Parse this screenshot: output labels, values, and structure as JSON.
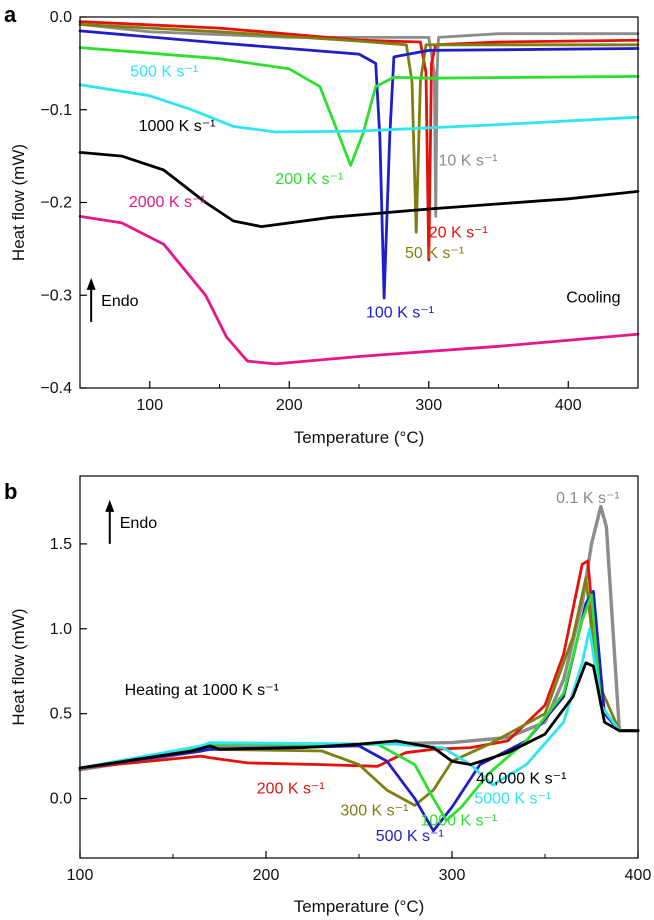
{
  "chart_data": [
    {
      "panel": "a",
      "type": "line",
      "title": "",
      "xlabel": "Temperature (°C)",
      "ylabel": "Heat flow (mW)",
      "xlim": [
        50,
        450
      ],
      "ylim": [
        -0.4,
        0.0
      ],
      "xticks": [
        100,
        200,
        300,
        400
      ],
      "yticks": [
        -0.4,
        -0.3,
        -0.2,
        -0.1,
        0.0
      ],
      "ytick_labels": [
        "−0.4",
        "−0.3",
        "−0.2",
        "−0.1",
        "0.0"
      ],
      "annotations": [
        {
          "text": "Endo",
          "arrow": "up",
          "x": 58,
          "y": -0.305
        },
        {
          "text": "Cooling",
          "x": 418,
          "y": -0.308
        }
      ],
      "series": [
        {
          "name": "10 K s⁻¹",
          "color": "#8c8c8c",
          "label_x": 307,
          "label_y": -0.16,
          "x": [
            50,
            100,
            200,
            300,
            304,
            305,
            306,
            307,
            350,
            450
          ],
          "y": [
            -0.008,
            -0.016,
            -0.022,
            -0.022,
            -0.06,
            -0.215,
            -0.06,
            -0.022,
            -0.018,
            -0.018
          ]
        },
        {
          "name": "20 K s⁻¹",
          "color": "#e3120b",
          "label_x": 300,
          "label_y": -0.238,
          "x": [
            50,
            150,
            250,
            294,
            298,
            300,
            302,
            305,
            350,
            450
          ],
          "y": [
            -0.005,
            -0.012,
            -0.025,
            -0.027,
            -0.06,
            -0.262,
            -0.05,
            -0.03,
            -0.027,
            -0.025
          ]
        },
        {
          "name": "50 K s⁻¹",
          "color": "#7f7f0f",
          "label_x": 283,
          "label_y": -0.26,
          "x": [
            50,
            150,
            250,
            284,
            288,
            291,
            294,
            298,
            350,
            450
          ],
          "y": [
            -0.008,
            -0.016,
            -0.026,
            -0.03,
            -0.07,
            -0.232,
            -0.07,
            -0.03,
            -0.03,
            -0.03
          ]
        },
        {
          "name": "100 K s⁻¹",
          "color": "#1f1fc9",
          "label_x": 255,
          "label_y": -0.324,
          "x": [
            50,
            150,
            250,
            262,
            265,
            268,
            272,
            275,
            300,
            450
          ],
          "y": [
            -0.015,
            -0.028,
            -0.04,
            -0.05,
            -0.13,
            -0.303,
            -0.13,
            -0.043,
            -0.036,
            -0.034
          ]
        },
        {
          "name": "200 K s⁻¹",
          "color": "#2ee02e",
          "label_x": 190,
          "label_y": -0.18,
          "x": [
            50,
            150,
            200,
            222,
            235,
            244,
            253,
            262,
            275,
            300,
            450
          ],
          "y": [
            -0.033,
            -0.045,
            -0.056,
            -0.075,
            -0.125,
            -0.16,
            -0.125,
            -0.075,
            -0.065,
            -0.066,
            -0.064
          ]
        },
        {
          "name": "500 K s⁻¹",
          "color": "#2ee6f2",
          "label_x": 86,
          "label_y": -0.064,
          "x": [
            50,
            100,
            130,
            160,
            190,
            250,
            350,
            450
          ],
          "y": [
            -0.073,
            -0.085,
            -0.1,
            -0.118,
            -0.124,
            -0.123,
            -0.116,
            -0.108
          ]
        },
        {
          "name": "1000 K s⁻¹",
          "color": "#000000",
          "label_x": 92,
          "label_y": -0.123,
          "x": [
            50,
            80,
            110,
            140,
            160,
            180,
            230,
            300,
            400,
            450
          ],
          "y": [
            -0.146,
            -0.15,
            -0.165,
            -0.2,
            -0.22,
            -0.226,
            -0.216,
            -0.207,
            -0.196,
            -0.188
          ]
        },
        {
          "name": "2000 K s⁻¹",
          "color": "#e5178a",
          "label_x": 85,
          "label_y": -0.205,
          "x": [
            50,
            80,
            110,
            140,
            155,
            170,
            190,
            250,
            350,
            450
          ],
          "y": [
            -0.215,
            -0.222,
            -0.245,
            -0.3,
            -0.345,
            -0.371,
            -0.374,
            -0.366,
            -0.355,
            -0.342
          ]
        }
      ]
    },
    {
      "panel": "b",
      "type": "line",
      "title": "",
      "xlabel": "Temperature (°C)",
      "ylabel": "Heat flow (mW)",
      "xlim": [
        100,
        400
      ],
      "ylim": [
        -0.35,
        1.9
      ],
      "xticks": [
        100,
        200,
        300,
        400
      ],
      "yticks": [
        0.0,
        0.5,
        1.0,
        1.5
      ],
      "ytick_labels": [
        "0.0",
        "0.5",
        "1.0",
        "1.5"
      ],
      "annotations": [
        {
          "text": "Endo",
          "arrow": "up",
          "x": 116,
          "y": 1.63
        },
        {
          "text": "Heating at 1000 K s⁻¹",
          "x": 124,
          "y": 0.61
        }
      ],
      "series": [
        {
          "name": "0.1 K s⁻¹",
          "color": "#8c8c8c",
          "label_x": 356,
          "label_y": 1.74,
          "x": [
            100,
            165,
            170,
            180,
            250,
            300,
            330,
            350,
            360,
            370,
            375,
            380,
            383,
            390,
            400
          ],
          "y": [
            0.17,
            0.28,
            0.3,
            0.31,
            0.32,
            0.33,
            0.36,
            0.45,
            0.7,
            1.15,
            1.5,
            1.72,
            1.6,
            0.4,
            0.4
          ]
        },
        {
          "name": "200 K s⁻¹",
          "color": "#e3120b",
          "label_x": 195,
          "label_y": 0.03,
          "x": [
            100,
            165,
            170,
            190,
            230,
            260,
            275,
            290,
            310,
            330,
            350,
            360,
            370,
            373,
            380,
            390,
            400
          ],
          "y": [
            0.18,
            0.25,
            0.24,
            0.21,
            0.2,
            0.19,
            0.27,
            0.29,
            0.3,
            0.34,
            0.55,
            0.85,
            1.38,
            1.4,
            0.55,
            0.4,
            0.4
          ]
        },
        {
          "name": "300 K s⁻¹",
          "color": "#7f7f0f",
          "label_x": 240,
          "label_y": -0.1,
          "x": [
            100,
            165,
            170,
            230,
            250,
            265,
            280,
            290,
            300,
            320,
            350,
            365,
            372,
            378,
            390,
            400
          ],
          "y": [
            0.18,
            0.28,
            0.29,
            0.28,
            0.2,
            0.05,
            -0.04,
            0.05,
            0.22,
            0.32,
            0.5,
            0.95,
            1.3,
            0.7,
            0.4,
            0.4
          ]
        },
        {
          "name": "500 K s⁻¹",
          "color": "#1f1fc9",
          "label_x": 259,
          "label_y": -0.25,
          "x": [
            100,
            165,
            170,
            250,
            265,
            280,
            290,
            300,
            315,
            340,
            360,
            372,
            376,
            382,
            390,
            400
          ],
          "y": [
            0.18,
            0.28,
            0.29,
            0.31,
            0.22,
            0.0,
            -0.19,
            -0.05,
            0.2,
            0.34,
            0.6,
            1.15,
            1.22,
            0.5,
            0.4,
            0.4
          ]
        },
        {
          "name": "1000 K s⁻¹",
          "color": "#2ee02e",
          "label_x": 283,
          "label_y": -0.16,
          "x": [
            100,
            165,
            170,
            260,
            280,
            290,
            297,
            305,
            320,
            340,
            360,
            370,
            375,
            380,
            390,
            400
          ],
          "y": [
            0.18,
            0.3,
            0.32,
            0.32,
            0.2,
            0.0,
            -0.13,
            -0.05,
            0.15,
            0.34,
            0.62,
            1.05,
            1.2,
            0.55,
            0.4,
            0.4
          ]
        },
        {
          "name": "5000 K s⁻¹",
          "color": "#2ee6f2",
          "label_x": 312,
          "label_y": -0.03,
          "x": [
            100,
            165,
            170,
            270,
            295,
            310,
            322,
            340,
            360,
            370,
            374,
            380,
            390,
            400
          ],
          "y": [
            0.18,
            0.31,
            0.33,
            0.32,
            0.3,
            0.2,
            0.08,
            0.2,
            0.45,
            0.8,
            1.0,
            0.55,
            0.4,
            0.4
          ]
        },
        {
          "name": "40,000 K s⁻¹",
          "color": "#000000",
          "label_x": 313,
          "label_y": 0.09,
          "x": [
            100,
            160,
            170,
            175,
            220,
            250,
            270,
            290,
            300,
            310,
            330,
            350,
            365,
            372,
            376,
            382,
            390,
            400
          ],
          "y": [
            0.18,
            0.28,
            0.31,
            0.29,
            0.3,
            0.32,
            0.34,
            0.3,
            0.22,
            0.2,
            0.27,
            0.38,
            0.6,
            0.8,
            0.78,
            0.45,
            0.4,
            0.4
          ]
        }
      ]
    }
  ]
}
